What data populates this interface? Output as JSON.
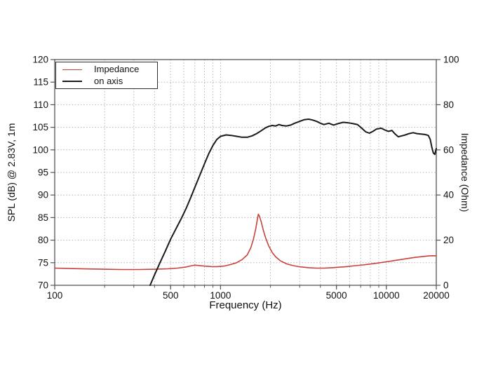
{
  "chart_data": {
    "type": "line",
    "title": "",
    "xlabel": "Frequency (Hz)",
    "ylabel_left": "SPL (dB) @ 2.83V, 1m",
    "ylabel_right": "Impedance (Ohm)",
    "x_scale": "log",
    "x_range": [
      100,
      20000
    ],
    "y_left_range": [
      70,
      120
    ],
    "y_right_range": [
      0,
      100
    ],
    "y_left_ticks": [
      70,
      75,
      80,
      85,
      90,
      95,
      100,
      105,
      110,
      115,
      120
    ],
    "y_right_ticks": [
      0,
      20,
      40,
      60,
      80,
      100
    ],
    "x_labeled_ticks": [
      100,
      500,
      1000,
      5000,
      10000,
      20000
    ],
    "x_gridlines": [
      200,
      300,
      400,
      500,
      600,
      700,
      800,
      900,
      1000,
      2000,
      3000,
      4000,
      5000,
      6000,
      7000,
      8000,
      9000,
      10000
    ],
    "y_gridlines": [
      75,
      80,
      85,
      90,
      95,
      100,
      105,
      110,
      115
    ],
    "grid_style": "dotted",
    "legend_position": "top-left",
    "colors": {
      "impedance": "#c8413a",
      "on_axis": "#1a1a1a",
      "grid": "#b3b3b3",
      "frame": "#555555",
      "text": "#111111"
    },
    "series": [
      {
        "name": "Impedance",
        "axis": "right",
        "unit": "Ohm",
        "color_key": "impedance",
        "line_width": 1.6,
        "points": [
          [
            100,
            7.6
          ],
          [
            130,
            7.4
          ],
          [
            160,
            7.25
          ],
          [
            200,
            7.1
          ],
          [
            250,
            7.0
          ],
          [
            320,
            7.0
          ],
          [
            400,
            7.1
          ],
          [
            480,
            7.3
          ],
          [
            550,
            7.6
          ],
          [
            620,
            8.1
          ],
          [
            670,
            8.7
          ],
          [
            700,
            8.9
          ],
          [
            730,
            8.8
          ],
          [
            800,
            8.5
          ],
          [
            880,
            8.3
          ],
          [
            950,
            8.25
          ],
          [
            1050,
            8.5
          ],
          [
            1150,
            9.2
          ],
          [
            1250,
            10.0
          ],
          [
            1350,
            11.4
          ],
          [
            1450,
            13.5
          ],
          [
            1520,
            16.5
          ],
          [
            1580,
            20.5
          ],
          [
            1630,
            25.0
          ],
          [
            1660,
            28.5
          ],
          [
            1690,
            31.5
          ],
          [
            1720,
            30.5
          ],
          [
            1760,
            28.0
          ],
          [
            1810,
            24.5
          ],
          [
            1870,
            21.0
          ],
          [
            1950,
            17.5
          ],
          [
            2050,
            14.5
          ],
          [
            2150,
            12.6
          ],
          [
            2300,
            10.8
          ],
          [
            2500,
            9.5
          ],
          [
            2750,
            8.7
          ],
          [
            3000,
            8.2
          ],
          [
            3400,
            7.8
          ],
          [
            3800,
            7.6
          ],
          [
            4200,
            7.6
          ],
          [
            4700,
            7.8
          ],
          [
            5200,
            8.0
          ],
          [
            5800,
            8.3
          ],
          [
            6500,
            8.7
          ],
          [
            7200,
            9.0
          ],
          [
            8000,
            9.4
          ],
          [
            9000,
            9.9
          ],
          [
            10000,
            10.4
          ],
          [
            11000,
            10.9
          ],
          [
            12000,
            11.3
          ],
          [
            13500,
            11.9
          ],
          [
            15000,
            12.4
          ],
          [
            16500,
            12.7
          ],
          [
            18000,
            13.0
          ],
          [
            19200,
            13.1
          ],
          [
            20000,
            13.0
          ]
        ]
      },
      {
        "name": "on axis",
        "axis": "left",
        "unit": "dB",
        "color_key": "on_axis",
        "line_width": 2,
        "points": [
          [
            376,
            70.0
          ],
          [
            400,
            72.3
          ],
          [
            430,
            74.9
          ],
          [
            465,
            77.6
          ],
          [
            500,
            80.2
          ],
          [
            540,
            82.6
          ],
          [
            580,
            84.8
          ],
          [
            620,
            87.0
          ],
          [
            660,
            89.4
          ],
          [
            700,
            91.7
          ],
          [
            750,
            94.4
          ],
          [
            800,
            96.9
          ],
          [
            850,
            99.2
          ],
          [
            900,
            101.0
          ],
          [
            950,
            102.3
          ],
          [
            1000,
            103.0
          ],
          [
            1080,
            103.3
          ],
          [
            1160,
            103.2
          ],
          [
            1250,
            103.0
          ],
          [
            1350,
            102.8
          ],
          [
            1450,
            102.8
          ],
          [
            1550,
            103.1
          ],
          [
            1650,
            103.6
          ],
          [
            1750,
            104.2
          ],
          [
            1850,
            104.8
          ],
          [
            1950,
            105.2
          ],
          [
            2050,
            105.4
          ],
          [
            2150,
            105.3
          ],
          [
            2250,
            105.6
          ],
          [
            2350,
            105.4
          ],
          [
            2500,
            105.3
          ],
          [
            2650,
            105.5
          ],
          [
            2800,
            105.9
          ],
          [
            3000,
            106.3
          ],
          [
            3200,
            106.7
          ],
          [
            3400,
            106.8
          ],
          [
            3600,
            106.6
          ],
          [
            3800,
            106.3
          ],
          [
            4000,
            105.9
          ],
          [
            4200,
            105.6
          ],
          [
            4500,
            105.9
          ],
          [
            4800,
            105.5
          ],
          [
            5100,
            105.8
          ],
          [
            5500,
            106.1
          ],
          [
            5900,
            106.0
          ],
          [
            6300,
            105.8
          ],
          [
            6700,
            105.6
          ],
          [
            7100,
            104.8
          ],
          [
            7500,
            104.0
          ],
          [
            7900,
            103.7
          ],
          [
            8300,
            104.1
          ],
          [
            8700,
            104.6
          ],
          [
            9300,
            104.8
          ],
          [
            9800,
            104.4
          ],
          [
            10300,
            104.1
          ],
          [
            10800,
            104.3
          ],
          [
            11300,
            103.5
          ],
          [
            11800,
            102.9
          ],
          [
            12400,
            103.1
          ],
          [
            13000,
            103.3
          ],
          [
            13700,
            103.6
          ],
          [
            14500,
            103.8
          ],
          [
            15300,
            103.6
          ],
          [
            16200,
            103.5
          ],
          [
            17100,
            103.4
          ],
          [
            17900,
            103.2
          ],
          [
            18400,
            102.3
          ],
          [
            18800,
            100.6
          ],
          [
            19200,
            99.3
          ],
          [
            19600,
            99.0
          ],
          [
            19900,
            100.0
          ],
          [
            20000,
            100.3
          ]
        ]
      }
    ]
  }
}
